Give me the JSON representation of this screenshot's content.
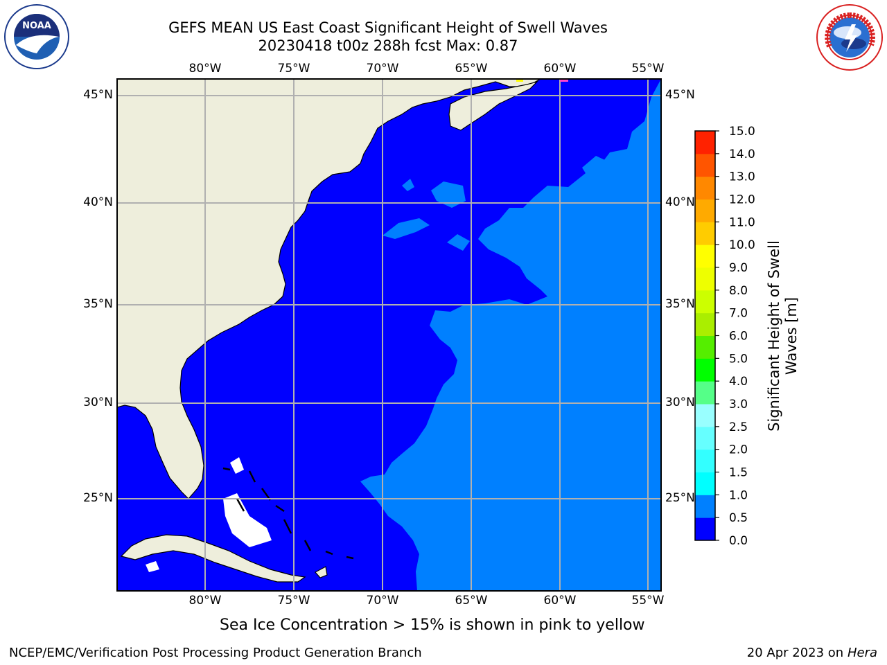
{
  "title": {
    "line1": "GEFS MEAN US East Coast Significant Height of Swell Waves",
    "line2": "20230418 t00z 288h fcst   Max: 0.87"
  },
  "logos": {
    "left": "NOAA",
    "right": "NATIONAL WEATHER SERVICE"
  },
  "map": {
    "lon_labels": [
      "80°W",
      "75°W",
      "70°W",
      "65°W",
      "60°W",
      "55°W"
    ],
    "lat_labels": [
      "45°N",
      "40°N",
      "35°N",
      "30°N",
      "25°N"
    ],
    "colors": {
      "ocean_low": "#0000ff",
      "ocean_mid": "#0080ff",
      "land": "#eeeedc",
      "grid": "#b0b0b0"
    }
  },
  "colorbar": {
    "title_line1": "Significant Height of Swell",
    "title_line2": "Waves [m]",
    "levels": [
      "0.0",
      "0.5",
      "1.0",
      "1.5",
      "2.0",
      "2.5",
      "3.0",
      "4.0",
      "5.0",
      "6.0",
      "7.0",
      "8.0",
      "9.0",
      "10.0",
      "11.0",
      "12.0",
      "13.0",
      "14.0",
      "15.0"
    ],
    "colors": [
      "#0000ff",
      "#0080ff",
      "#00ffff",
      "#33ffff",
      "#66ffff",
      "#99ffff",
      "#55ff88",
      "#00ff00",
      "#55ee00",
      "#aaee00",
      "#ccff00",
      "#eeff00",
      "#ffff00",
      "#ffcc00",
      "#ffaa00",
      "#ff8800",
      "#ff5500",
      "#ff2200"
    ]
  },
  "ice_note": "Sea Ice Concentration > 15% is shown in pink to yellow",
  "footer": {
    "left": "NCEP/EMC/Verification Post Processing Product Generation Branch",
    "right_date": "20 Apr 2023 on ",
    "right_host": "Hera"
  }
}
